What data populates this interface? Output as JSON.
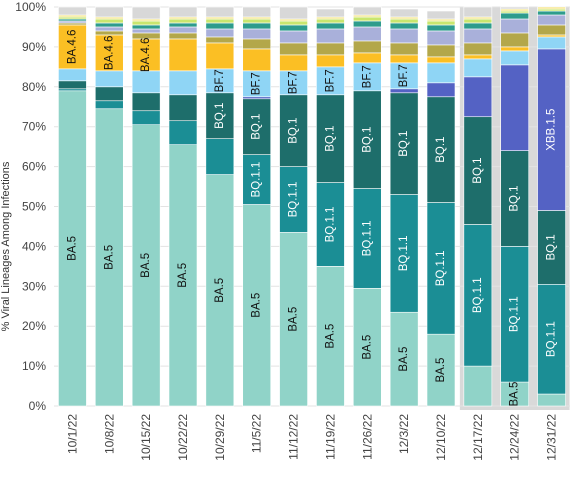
{
  "chart_data": {
    "type": "bar",
    "stacked": true,
    "percent": true,
    "ylabel": "% Viral Lineages Among Infections",
    "ylim": [
      0,
      100
    ],
    "yticks": [
      "0%",
      "10%",
      "20%",
      "30%",
      "40%",
      "50%",
      "60%",
      "70%",
      "80%",
      "90%",
      "100%"
    ],
    "grid": true,
    "categories": [
      "10/1/22",
      "10/8/22",
      "10/15/22",
      "10/22/22",
      "10/29/22",
      "11/5/22",
      "11/12/22",
      "11/19/22",
      "11/26/22",
      "12/3/22",
      "12/10/22",
      "12/17/22",
      "12/24/22",
      "12/31/22"
    ],
    "nowcast_categories": [
      "12/17/22",
      "12/24/22",
      "12/31/22"
    ],
    "series": [
      {
        "name": "BA.5",
        "color": "#90d3c8",
        "values": [
          79,
          74.5,
          70.5,
          65.5,
          58,
          50.5,
          43.5,
          35,
          29.5,
          23.5,
          18,
          10,
          6,
          3
        ]
      },
      {
        "name": "BQ.1.1",
        "color": "#1b8e95",
        "values": [
          0.5,
          2,
          3.5,
          6,
          9,
          12.5,
          16.5,
          21,
          25,
          29.5,
          33,
          35.5,
          34,
          27.5
        ]
      },
      {
        "name": "BQ.1",
        "color": "#1e6e6b",
        "values": [
          2,
          3.5,
          4.5,
          6.5,
          11.5,
          14,
          18,
          22,
          24.5,
          25.5,
          26.5,
          27,
          24,
          18.5
        ]
      },
      {
        "name": "XBB.1.5",
        "color": "#5462c4",
        "values": [
          0,
          0,
          0,
          0,
          0,
          0.5,
          0,
          0,
          0,
          1,
          3.5,
          10,
          21.5,
          40.5
        ]
      },
      {
        "name": "BF.7",
        "color": "#8fd5f5",
        "values": [
          3,
          4,
          5.5,
          6,
          6,
          6.5,
          6,
          7,
          7,
          6.5,
          5,
          4.5,
          3.5,
          3
        ]
      },
      {
        "name": "BA.4.6",
        "color": "#fbbf24",
        "values": [
          11,
          9,
          8,
          8,
          6.5,
          5.5,
          4,
          3,
          2.5,
          2,
          1.5,
          1,
          1,
          0.5
        ]
      },
      {
        "name": "",
        "color": "#b3a74a",
        "values": [
          0.5,
          1,
          1.5,
          1.5,
          1.5,
          2.5,
          3,
          3,
          3,
          3,
          3,
          3,
          3.5,
          2.5
        ]
      },
      {
        "name": "",
        "color": "#a9b0da",
        "values": [
          0.5,
          1,
          1,
          1.5,
          2,
          2.5,
          3,
          3.5,
          3.5,
          3.5,
          3.5,
          3.5,
          3.5,
          2.5
        ]
      },
      {
        "name": "",
        "color": "#2e9c8c",
        "values": [
          0.5,
          1,
          1,
          1,
          1.5,
          1.5,
          1.5,
          1.5,
          1.5,
          1.5,
          1.5,
          1.5,
          1.5,
          1
        ]
      },
      {
        "name": "",
        "color": "#c9e66e",
        "values": [
          0.5,
          1,
          1,
          1,
          1,
          1,
          1,
          1,
          1,
          1,
          1,
          1,
          0.5,
          0.5
        ]
      },
      {
        "name": "",
        "color": "#f4e58a",
        "values": [
          0.5,
          0.5,
          0.5,
          0.5,
          0.5,
          0.5,
          0.5,
          0.5,
          0.5,
          0.5,
          0.5,
          0.5,
          0.5,
          0.5
        ]
      },
      {
        "name": "",
        "color": "#d8d8d8",
        "values": [
          2,
          2.5,
          3,
          2.5,
          2.5,
          2.5,
          3,
          2,
          2,
          2,
          2,
          2.5,
          1,
          0
        ]
      }
    ],
    "bar_labels": [
      {
        "text": "BA.5",
        "series": 0,
        "bars": [
          0,
          1,
          2,
          3,
          4,
          5,
          6,
          7,
          8,
          9,
          10,
          12
        ]
      },
      {
        "text": "BQ.1.1",
        "series": 1,
        "bars": [
          5,
          6,
          7,
          8,
          9,
          10,
          11,
          12,
          13
        ]
      },
      {
        "text": "BQ.1",
        "series": 2,
        "bars": [
          4,
          5,
          6,
          7,
          8,
          9,
          10,
          11,
          12,
          13
        ]
      },
      {
        "text": "XBB.1.5",
        "series": 3,
        "bars": [
          13
        ]
      },
      {
        "text": "BF.7",
        "series": 4,
        "bars": [
          4,
          5,
          6,
          7,
          8,
          9
        ]
      },
      {
        "text": "BA.4.6",
        "series": 5,
        "bars": [
          0,
          1,
          2
        ]
      }
    ]
  }
}
